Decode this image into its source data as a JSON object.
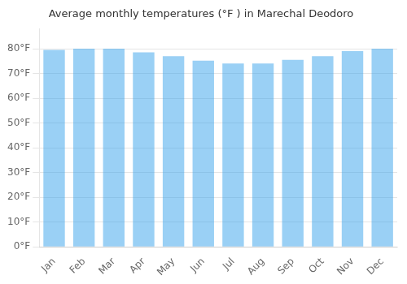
{
  "chart_data": {
    "type": "bar",
    "title": "Average monthly temperatures (°F ) in Marechal Deodoro",
    "categories": [
      "Jan",
      "Feb",
      "Mar",
      "Apr",
      "May",
      "Jun",
      "Jul",
      "Aug",
      "Sep",
      "Oct",
      "Nov",
      "Dec"
    ],
    "values": [
      79.5,
      80.0,
      80.0,
      78.5,
      77.0,
      75.2,
      74.0,
      74.0,
      75.5,
      77.0,
      79.0,
      80.0
    ],
    "ylim": [
      0,
      88
    ],
    "yticks": [
      {
        "value": 0,
        "label": "0°F"
      },
      {
        "value": 10,
        "label": "10°F"
      },
      {
        "value": 20,
        "label": "20°F"
      },
      {
        "value": 30,
        "label": "30°F"
      },
      {
        "value": 40,
        "label": "40°F"
      },
      {
        "value": 50,
        "label": "50°F"
      },
      {
        "value": 60,
        "label": "60°F"
      },
      {
        "value": 70,
        "label": "70°F"
      },
      {
        "value": 80,
        "label": "80°F"
      }
    ],
    "grid": "y"
  }
}
